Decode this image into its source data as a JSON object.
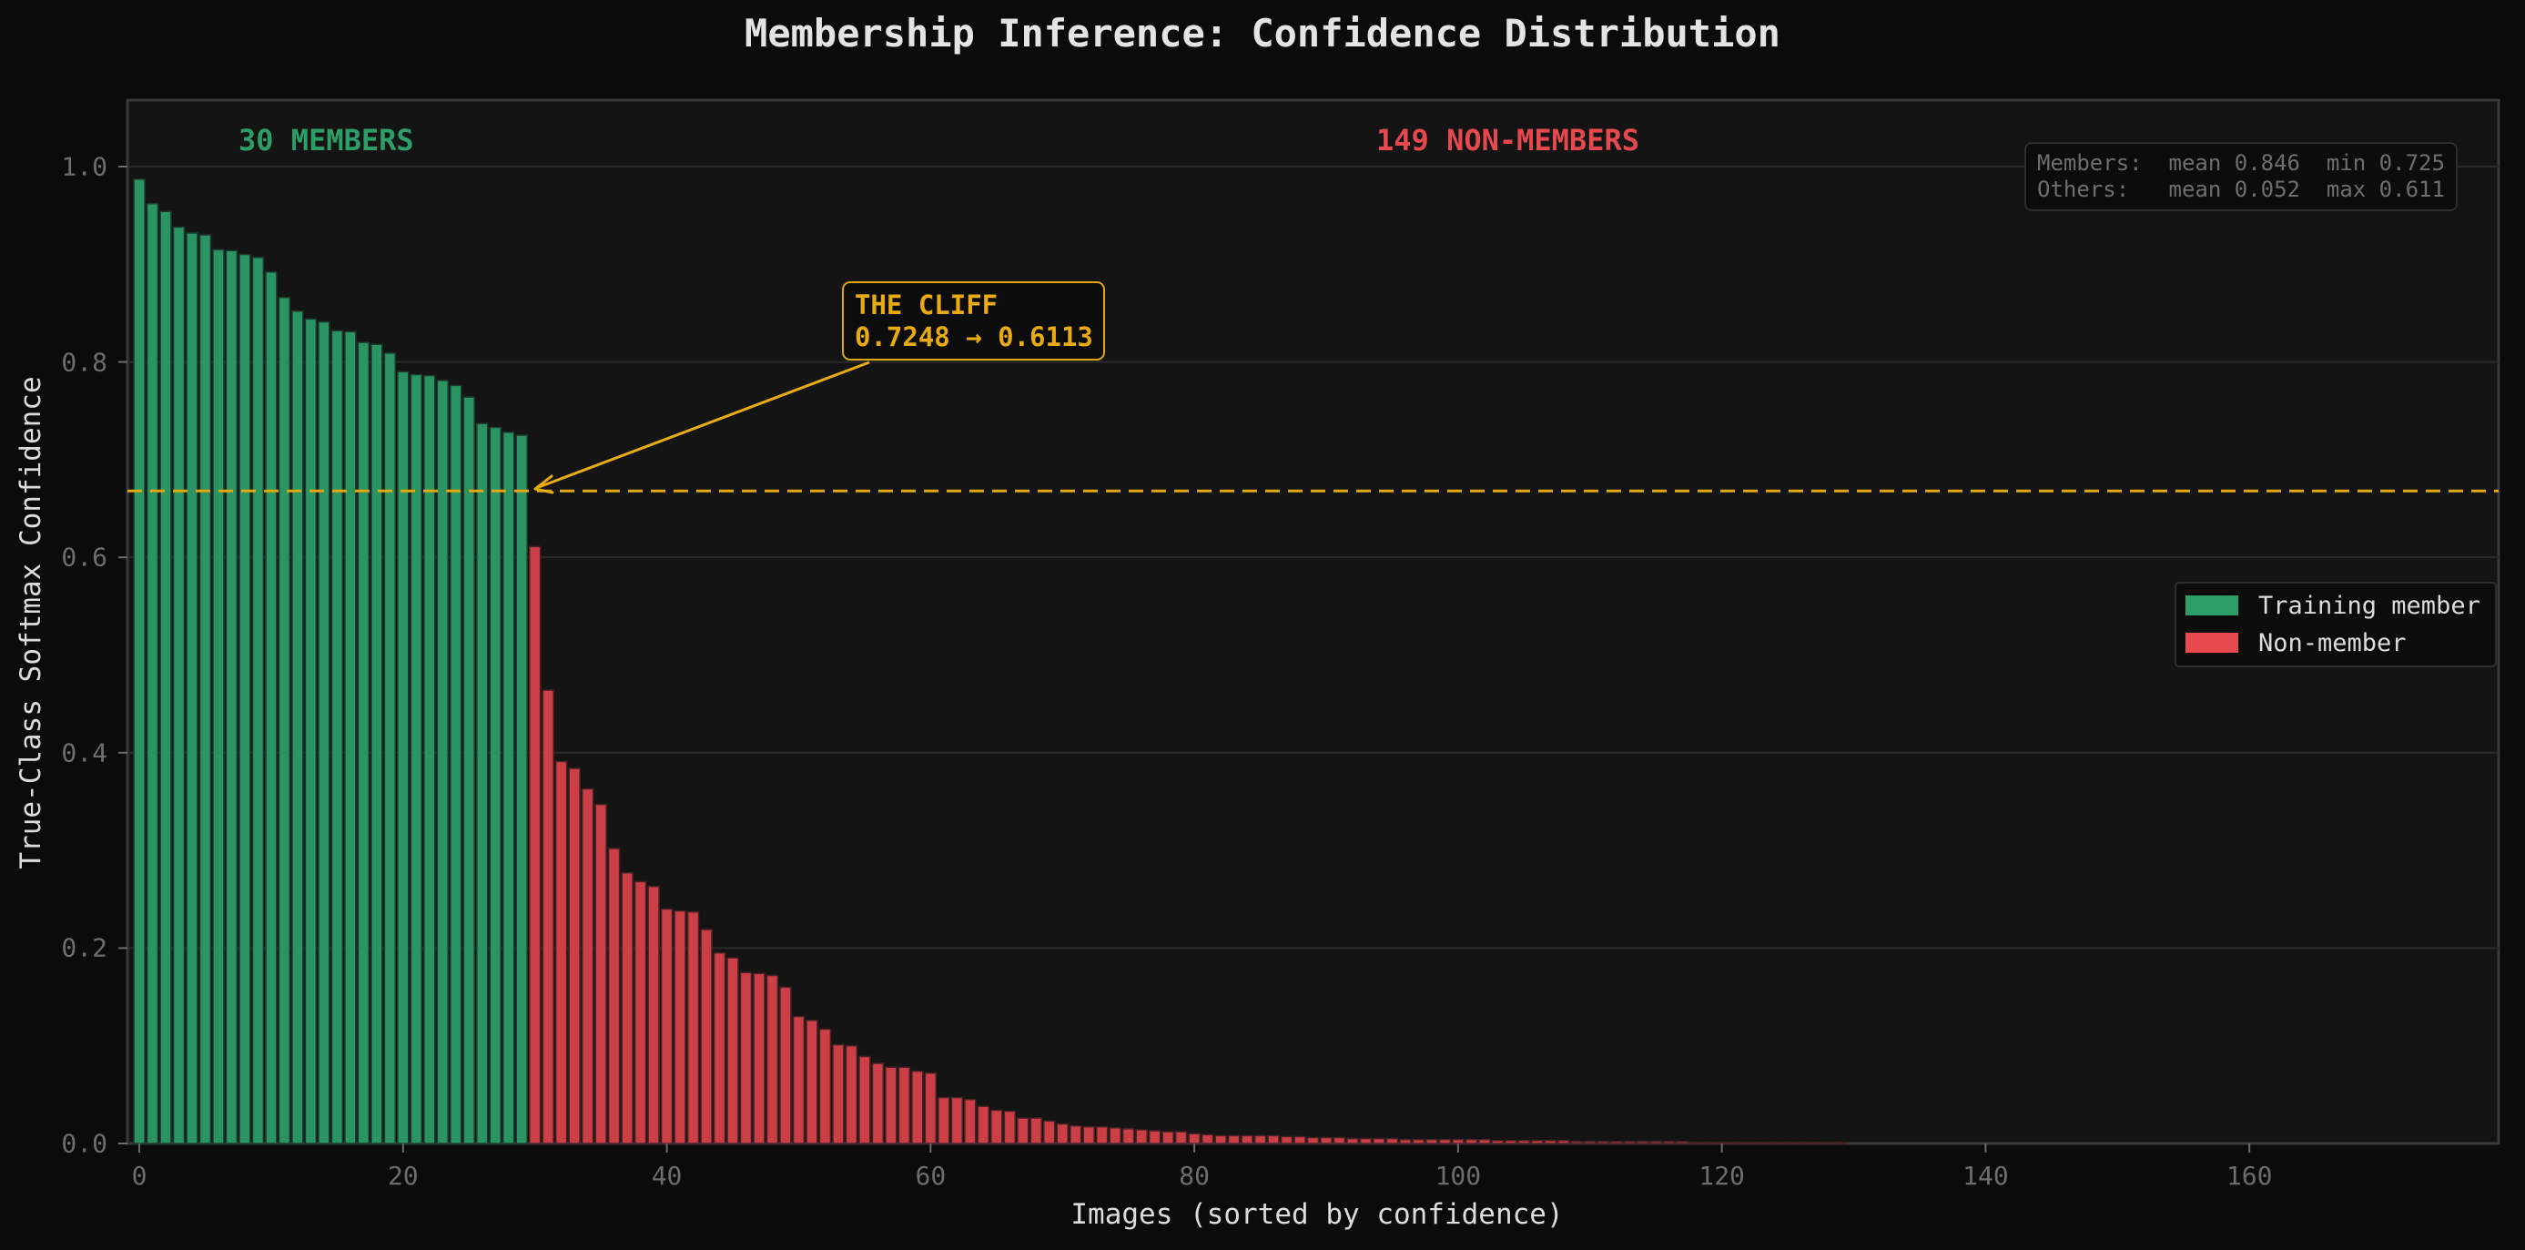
{
  "title": "Membership Inference: Confidence Distribution",
  "colors": {
    "background": "#0b0b0b",
    "plot_background": "#141414",
    "member": "#2a9463",
    "member_edge": "#1d3b2c",
    "non_member": "#cc3f47",
    "non_member_edge": "#4a2226",
    "threshold": "#e0a70f",
    "grid": "#2a2a2a",
    "spine": "#3a3a3a"
  },
  "annotations": {
    "members_count_label": "30 MEMBERS",
    "non_members_count_label": "149 NON-MEMBERS",
    "cliff_title": "THE CLIFF",
    "cliff_values": "0.7248 → 0.6113",
    "stats_members": "Members:  mean 0.846  min 0.725",
    "stats_others": "Others:   mean 0.052  max 0.611"
  },
  "legend": {
    "items": [
      {
        "label": "Training member",
        "color": "#2e9e68"
      },
      {
        "label": "Non-member",
        "color": "#e5484d"
      }
    ]
  },
  "chart_data": {
    "type": "bar",
    "title": "Membership Inference: Confidence Distribution",
    "xlabel": "Images (sorted by confidence)",
    "ylabel": "True-Class Softmax Confidence",
    "xlim": [
      -0.9,
      178.9
    ],
    "ylim": [
      0.0,
      1.068
    ],
    "xticks": [
      0,
      20,
      40,
      60,
      80,
      100,
      120,
      140,
      160
    ],
    "yticks": [
      "0.0",
      "0.2",
      "0.4",
      "0.6",
      "0.8",
      "1.0"
    ],
    "grid": "horizontal",
    "legend_position": "center right",
    "threshold": 0.668,
    "threshold_style": "dashed",
    "series": [
      {
        "name": "Training member",
        "start_index": 0,
        "values": [
          0.987,
          0.962,
          0.954,
          0.938,
          0.932,
          0.93,
          0.915,
          0.914,
          0.91,
          0.907,
          0.892,
          0.866,
          0.852,
          0.844,
          0.841,
          0.832,
          0.831,
          0.82,
          0.818,
          0.809,
          0.79,
          0.787,
          0.786,
          0.781,
          0.776,
          0.764,
          0.737,
          0.733,
          0.728,
          0.725
        ]
      },
      {
        "name": "Non-member",
        "start_index": 30,
        "values": [
          0.611,
          0.464,
          0.391,
          0.384,
          0.363,
          0.347,
          0.302,
          0.277,
          0.268,
          0.263,
          0.24,
          0.238,
          0.237,
          0.219,
          0.195,
          0.19,
          0.175,
          0.174,
          0.172,
          0.16,
          0.13,
          0.126,
          0.117,
          0.101,
          0.1,
          0.089,
          0.082,
          0.078,
          0.078,
          0.074,
          0.072,
          0.047,
          0.047,
          0.045,
          0.038,
          0.034,
          0.033,
          0.026,
          0.026,
          0.023,
          0.02,
          0.018,
          0.017,
          0.017,
          0.016,
          0.015,
          0.014,
          0.013,
          0.012,
          0.012,
          0.01,
          0.009,
          0.008,
          0.008,
          0.008,
          0.008,
          0.008,
          0.007,
          0.007,
          0.006,
          0.006,
          0.006,
          0.005,
          0.005,
          0.005,
          0.005,
          0.004,
          0.004,
          0.004,
          0.004,
          0.004,
          0.004,
          0.004,
          0.003,
          0.003,
          0.003,
          0.003,
          0.003,
          0.003,
          0.002,
          0.002,
          0.002,
          0.002,
          0.002,
          0.002,
          0.002,
          0.002,
          0.002,
          0.001,
          0.001,
          0.001,
          0.001,
          0.001,
          0.001,
          0.001,
          0.001,
          0.001,
          0.001,
          0.001,
          0.001,
          0.0,
          0.0,
          0.0,
          0.0,
          0.0,
          0.0,
          0.0,
          0.0,
          0.0,
          0.0,
          0.0,
          0.0,
          0.0,
          0.0,
          0.0,
          0.0,
          0.0,
          0.0,
          0.0,
          0.0,
          0.0,
          0.0,
          0.0,
          0.0,
          0.0,
          0.0,
          0.0,
          0.0,
          0.0,
          0.0,
          0.0,
          0.0,
          0.0,
          0.0,
          0.0,
          0.0,
          0.0,
          0.0,
          0.0,
          0.0,
          0.0,
          0.0,
          0.0,
          0.0,
          0.0,
          0.0,
          0.0,
          0.0,
          0.0
        ]
      }
    ],
    "summary": {
      "members": {
        "count": 30,
        "mean": 0.846,
        "min": 0.725
      },
      "others": {
        "count": 149,
        "mean": 0.052,
        "max": 0.611
      }
    },
    "annotations": [
      {
        "text": "THE CLIFF\n0.7248 → 0.6113",
        "arrow_to": [
          29.5,
          0.668
        ]
      },
      {
        "text": "30 MEMBERS",
        "x": 8,
        "y": 1.02
      },
      {
        "text": "149 NON-MEMBERS",
        "x": 93,
        "y": 1.02
      }
    ]
  }
}
